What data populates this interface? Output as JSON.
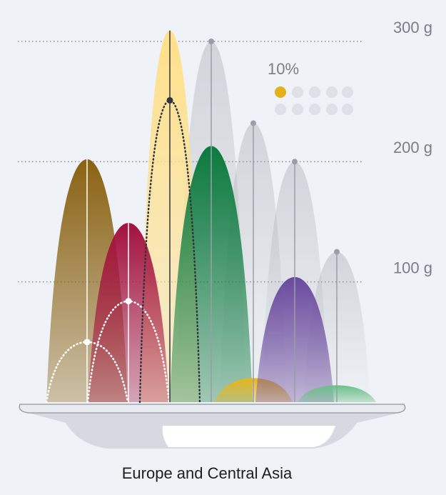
{
  "chart_data": {
    "type": "peaks",
    "title": "Europe and Central Asia",
    "annotation": "10%",
    "categories": [
      null,
      null,
      null,
      null,
      null,
      null,
      null
    ],
    "series": [
      {
        "colors": [
          "#8a6212",
          "#a3123e",
          "#ffe08a",
          "#0b7a3e",
          "#e8b51e",
          "#6b4a9e",
          "#6cc08a"
        ],
        "values": [
          202,
          149,
          309,
          213,
          20,
          104,
          14
        ]
      },
      {
        "color": "#9a9ea6",
        "values": [
          50,
          84,
          251,
          300,
          232,
          200,
          125
        ]
      }
    ],
    "ylim": [
      0,
      330
    ],
    "yticks": [
      {
        "value": 100,
        "label": "100 g"
      },
      {
        "value": 200,
        "label": "200 g"
      },
      {
        "value": 300,
        "label": "300 g"
      }
    ],
    "grid": true
  }
}
